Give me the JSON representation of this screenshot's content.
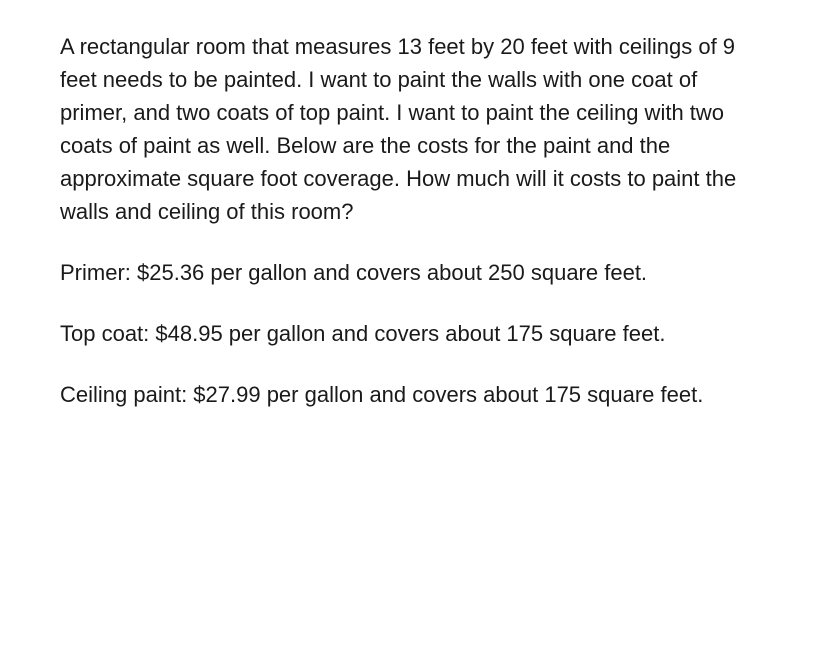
{
  "problem": {
    "question": "A rectangular room that measures 13 feet by 20 feet with ceilings of 9 feet needs to be painted. I want to paint the walls with one coat of primer, and two coats of top paint. I want to paint the ceiling with two coats of paint as well. Below are the costs for the paint and the approximate square foot coverage. How much will it costs to paint the walls and ceiling of this room?",
    "primer": "Primer: $25.36 per gallon and covers about 250 square feet.",
    "topcoat": "Top coat: $48.95 per gallon and covers about 175 square feet.",
    "ceiling": "Ceiling paint: $27.99 per gallon and covers about 175 square feet."
  },
  "style": {
    "text_color": "#1a1a1a",
    "background_color": "#ffffff",
    "font_size_pt": 22,
    "line_height": 1.5
  }
}
